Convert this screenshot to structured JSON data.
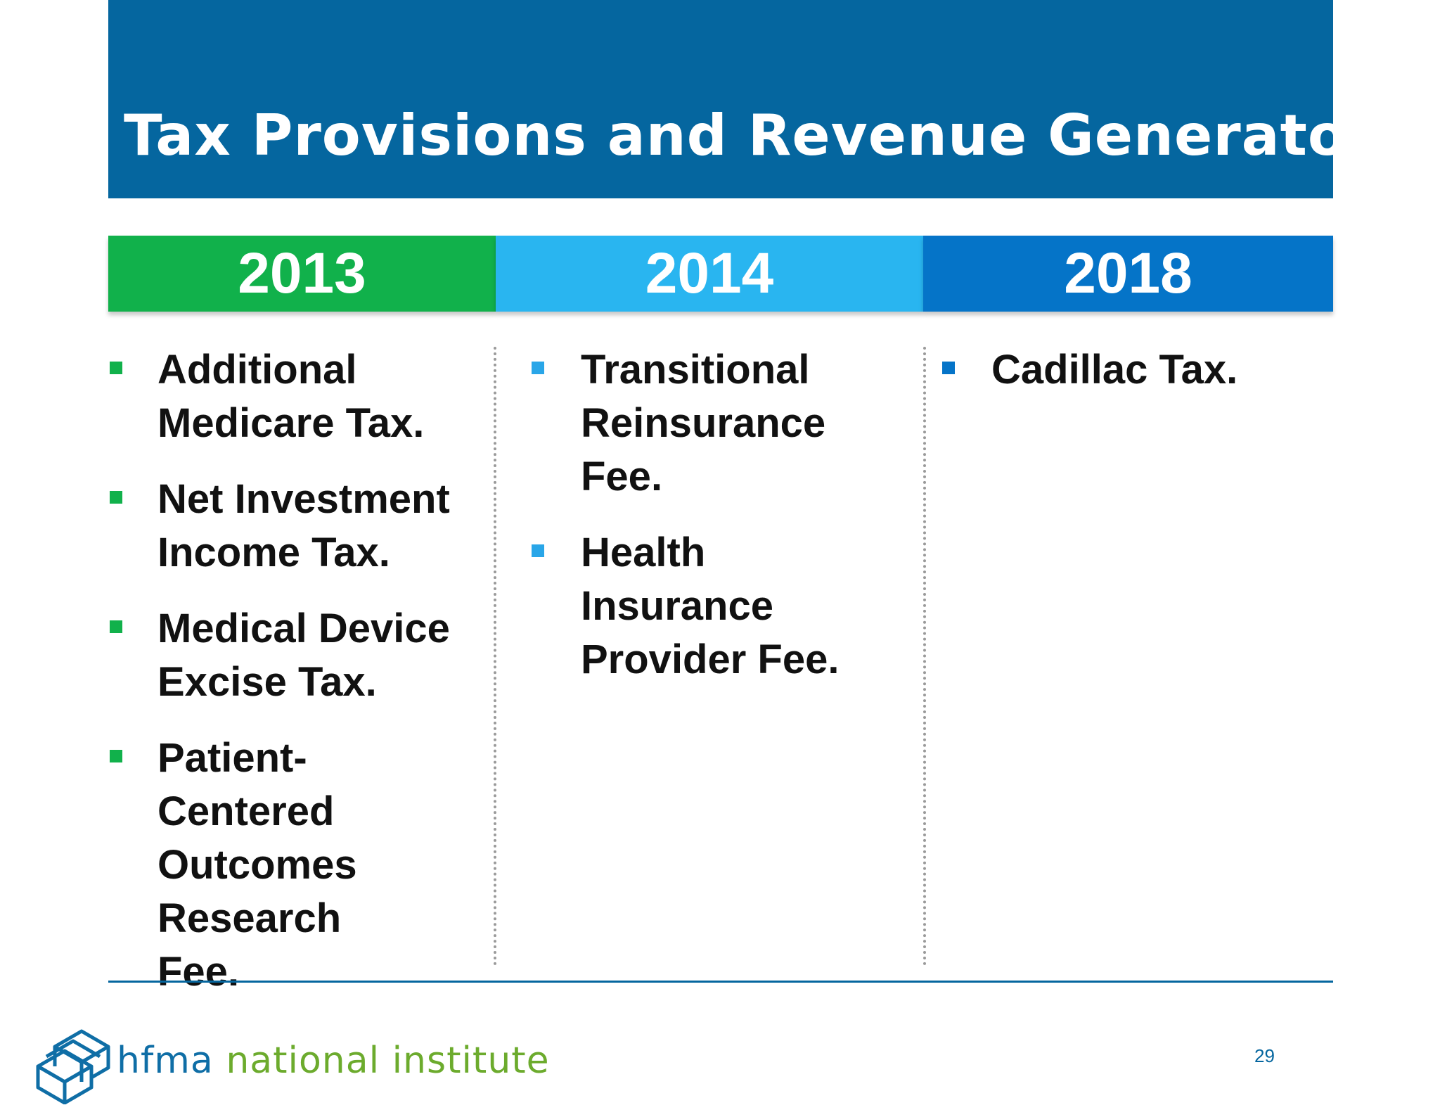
{
  "title": "Tax Provisions and Revenue Generators",
  "columns": [
    {
      "year": "2013",
      "color": "#11b14b",
      "items": [
        "Additional Medicare Tax.",
        "Net Investment Income Tax.",
        "Medical Device Excise Tax.",
        "Patient-Centered Outcomes Research Fee."
      ]
    },
    {
      "year": "2014",
      "color": "#29b5f0",
      "items": [
        "Transitional Reinsurance Fee.",
        "Health Insurance Provider Fee."
      ]
    },
    {
      "year": "2018",
      "color": "#0574c8",
      "items": [
        "Cadillac Tax."
      ]
    }
  ],
  "footer": {
    "logo_brand": "hfma",
    "logo_rest": " national institute",
    "logo_icon": "hfma-cube-logo-icon",
    "page_number": "29"
  }
}
